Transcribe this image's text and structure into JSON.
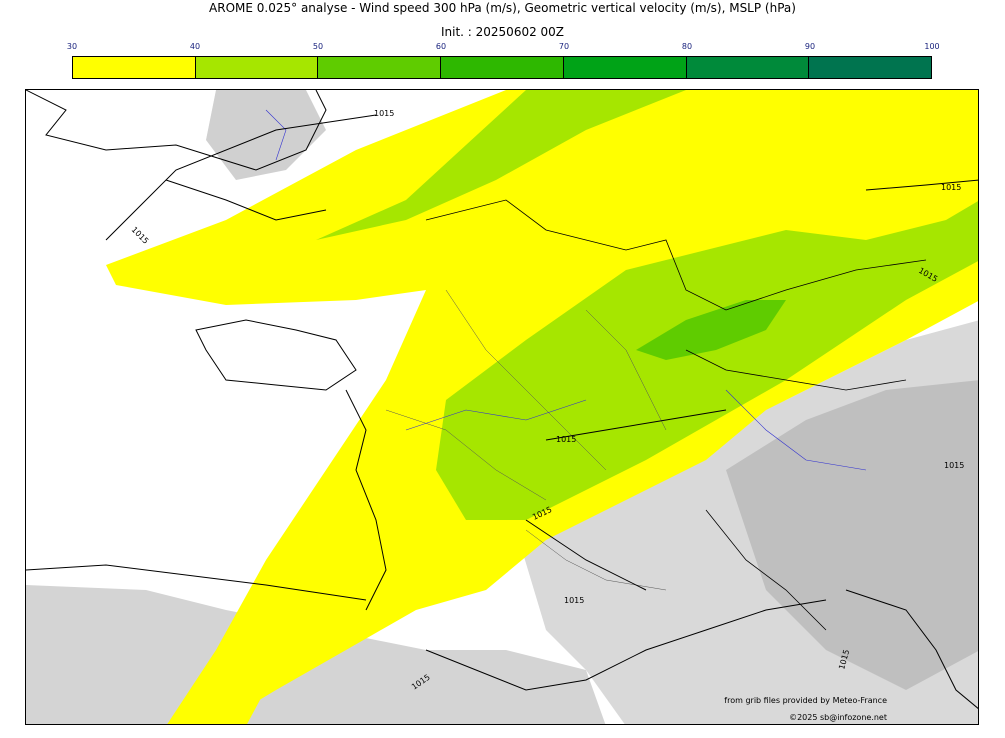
{
  "title": "AROME 0.025° analyse - Wind speed 300 hPa (m/s), Geometric vertical velocity (m/s), MSLP (hPa)",
  "init": "Init. : 20250602 00Z",
  "colorbar": {
    "ticks": [
      "30",
      "40",
      "50",
      "60",
      "70",
      "80",
      "90",
      "100"
    ],
    "colors": [
      "#ffff00",
      "#a6e600",
      "#5fcc00",
      "#2eb800",
      "#00a317",
      "#008a3a",
      "#00744f"
    ]
  },
  "isobars": {
    "labels": [
      "1015",
      "1015",
      "1015",
      "1015",
      "1015",
      "1015",
      "1015",
      "1015",
      "1015",
      "1015"
    ]
  },
  "credits": {
    "provider": "from grib files provided by Meteo-France",
    "copyright": "©2025 sb@infozone.net"
  }
}
